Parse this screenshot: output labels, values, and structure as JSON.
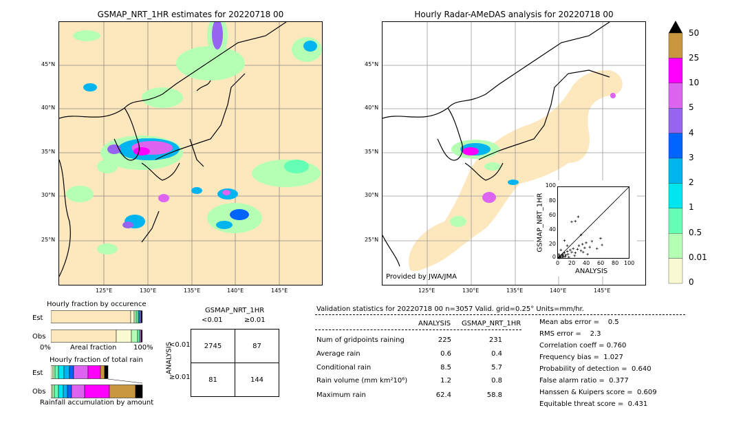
{
  "left_map": {
    "title": "GSMAP_NRT_1HR estimates for 20220718 00",
    "lat_labels": [
      "45°N",
      "40°N",
      "35°N",
      "30°N",
      "25°N"
    ],
    "lon_labels": [
      "125°E",
      "130°E",
      "135°E",
      "140°E",
      "145°E"
    ]
  },
  "right_map": {
    "title": "Hourly Radar-AMeDAS analysis for 20220718 00",
    "lat_labels": [
      "45°N",
      "40°N",
      "35°N",
      "30°N",
      "25°N"
    ],
    "lon_labels": [
      "125°E",
      "130°E",
      "135°E",
      "140°E",
      "145°E"
    ],
    "credit": "Provided by JWA/JMA"
  },
  "colorbar": {
    "labels": [
      "50",
      "25",
      "10",
      "5",
      "4",
      "3",
      "2",
      "1",
      "0.5",
      "0.01",
      "0"
    ],
    "colors": [
      "#c8963c",
      "#ff00ff",
      "#dc64f0",
      "#9664f0",
      "#0064ff",
      "#00b4f0",
      "#00e6f0",
      "#64ffb4",
      "#b4ffb4",
      "#fafad2",
      "#fde8bd"
    ]
  },
  "scatter": {
    "xlabel": "ANALYSIS",
    "ylabel": "GSMAP_NRT_1HR",
    "ticks": [
      "0",
      "20",
      "40",
      "60",
      "80",
      "100"
    ]
  },
  "fraction_occurrence": {
    "title": "Hourly fraction by occurence",
    "row_labels": [
      "Est",
      "Obs"
    ],
    "axis_left": "0%",
    "axis_mid": "Areal fraction",
    "axis_right": "100%"
  },
  "fraction_total": {
    "title": "Hourly fraction of total rain",
    "row_labels": [
      "Est",
      "Obs"
    ],
    "footer": "Rainfall accumulation by amount"
  },
  "contingency": {
    "title": "GSMAP_NRT_1HR",
    "col_labels": [
      "<0.01",
      "≥0.01"
    ],
    "row_axis": "ANALYSIS",
    "row_labels": [
      "<0.01",
      "≥0.01"
    ],
    "cells": [
      [
        "2745",
        "87"
      ],
      [
        "81",
        "144"
      ]
    ]
  },
  "validation": {
    "header": "Validation statistics for 20220718 00  n=3057 Valid. grid=0.25° Units=mm/hr.",
    "col_analysis": "ANALYSIS",
    "col_gsmap": "GSMAP_NRT_1HR",
    "rows": [
      {
        "label": "Num of gridpoints raining",
        "a": "225",
        "g": "231"
      },
      {
        "label": "Average rain",
        "a": "0.6",
        "g": "0.4"
      },
      {
        "label": "Conditional rain",
        "a": "8.5",
        "g": "5.7"
      },
      {
        "label": "Rain volume (mm km²10⁶)",
        "a": "1.2",
        "g": "0.8"
      },
      {
        "label": "Maximum rain",
        "a": "62.4",
        "g": "58.8"
      }
    ],
    "scores": [
      "Mean abs error =    0.5",
      "RMS error =    2.3",
      "Correlation coeff = 0.760",
      "Frequency bias =  1.027",
      "Probability of detection =  0.640",
      "False alarm ratio =  0.377",
      "Hanssen & Kuipers score =  0.609",
      "Equitable threat score =  0.431"
    ]
  },
  "chart_data": [
    {
      "type": "scatter",
      "xlabel": "ANALYSIS",
      "ylabel": "GSMAP_NRT_1HR",
      "xlim": [
        0,
        100
      ],
      "ylim": [
        0,
        100
      ],
      "points": [
        [
          1,
          1
        ],
        [
          2,
          2
        ],
        [
          3,
          1
        ],
        [
          4,
          3
        ],
        [
          5,
          2
        ],
        [
          6,
          5
        ],
        [
          7,
          4
        ],
        [
          8,
          6
        ],
        [
          9,
          3
        ],
        [
          10,
          8
        ],
        [
          12,
          5
        ],
        [
          14,
          10
        ],
        [
          15,
          6
        ],
        [
          18,
          12
        ],
        [
          20,
          9
        ],
        [
          22,
          14
        ],
        [
          25,
          8
        ],
        [
          28,
          13
        ],
        [
          30,
          18
        ],
        [
          33,
          11
        ],
        [
          35,
          20
        ],
        [
          38,
          15
        ],
        [
          40,
          22
        ],
        [
          45,
          16
        ],
        [
          48,
          24
        ],
        [
          55,
          14
        ],
        [
          60,
          28
        ],
        [
          62,
          19
        ],
        [
          20,
          51
        ],
        [
          25,
          52
        ],
        [
          29,
          58
        ],
        [
          33,
          33
        ],
        [
          10,
          25
        ],
        [
          5,
          12
        ],
        [
          7,
          2
        ],
        [
          3,
          4
        ],
        [
          2,
          6
        ],
        [
          11,
          3
        ],
        [
          16,
          2
        ],
        [
          24,
          4
        ],
        [
          42,
          6
        ],
        [
          14,
          18
        ],
        [
          36,
          9
        ]
      ]
    }
  ]
}
